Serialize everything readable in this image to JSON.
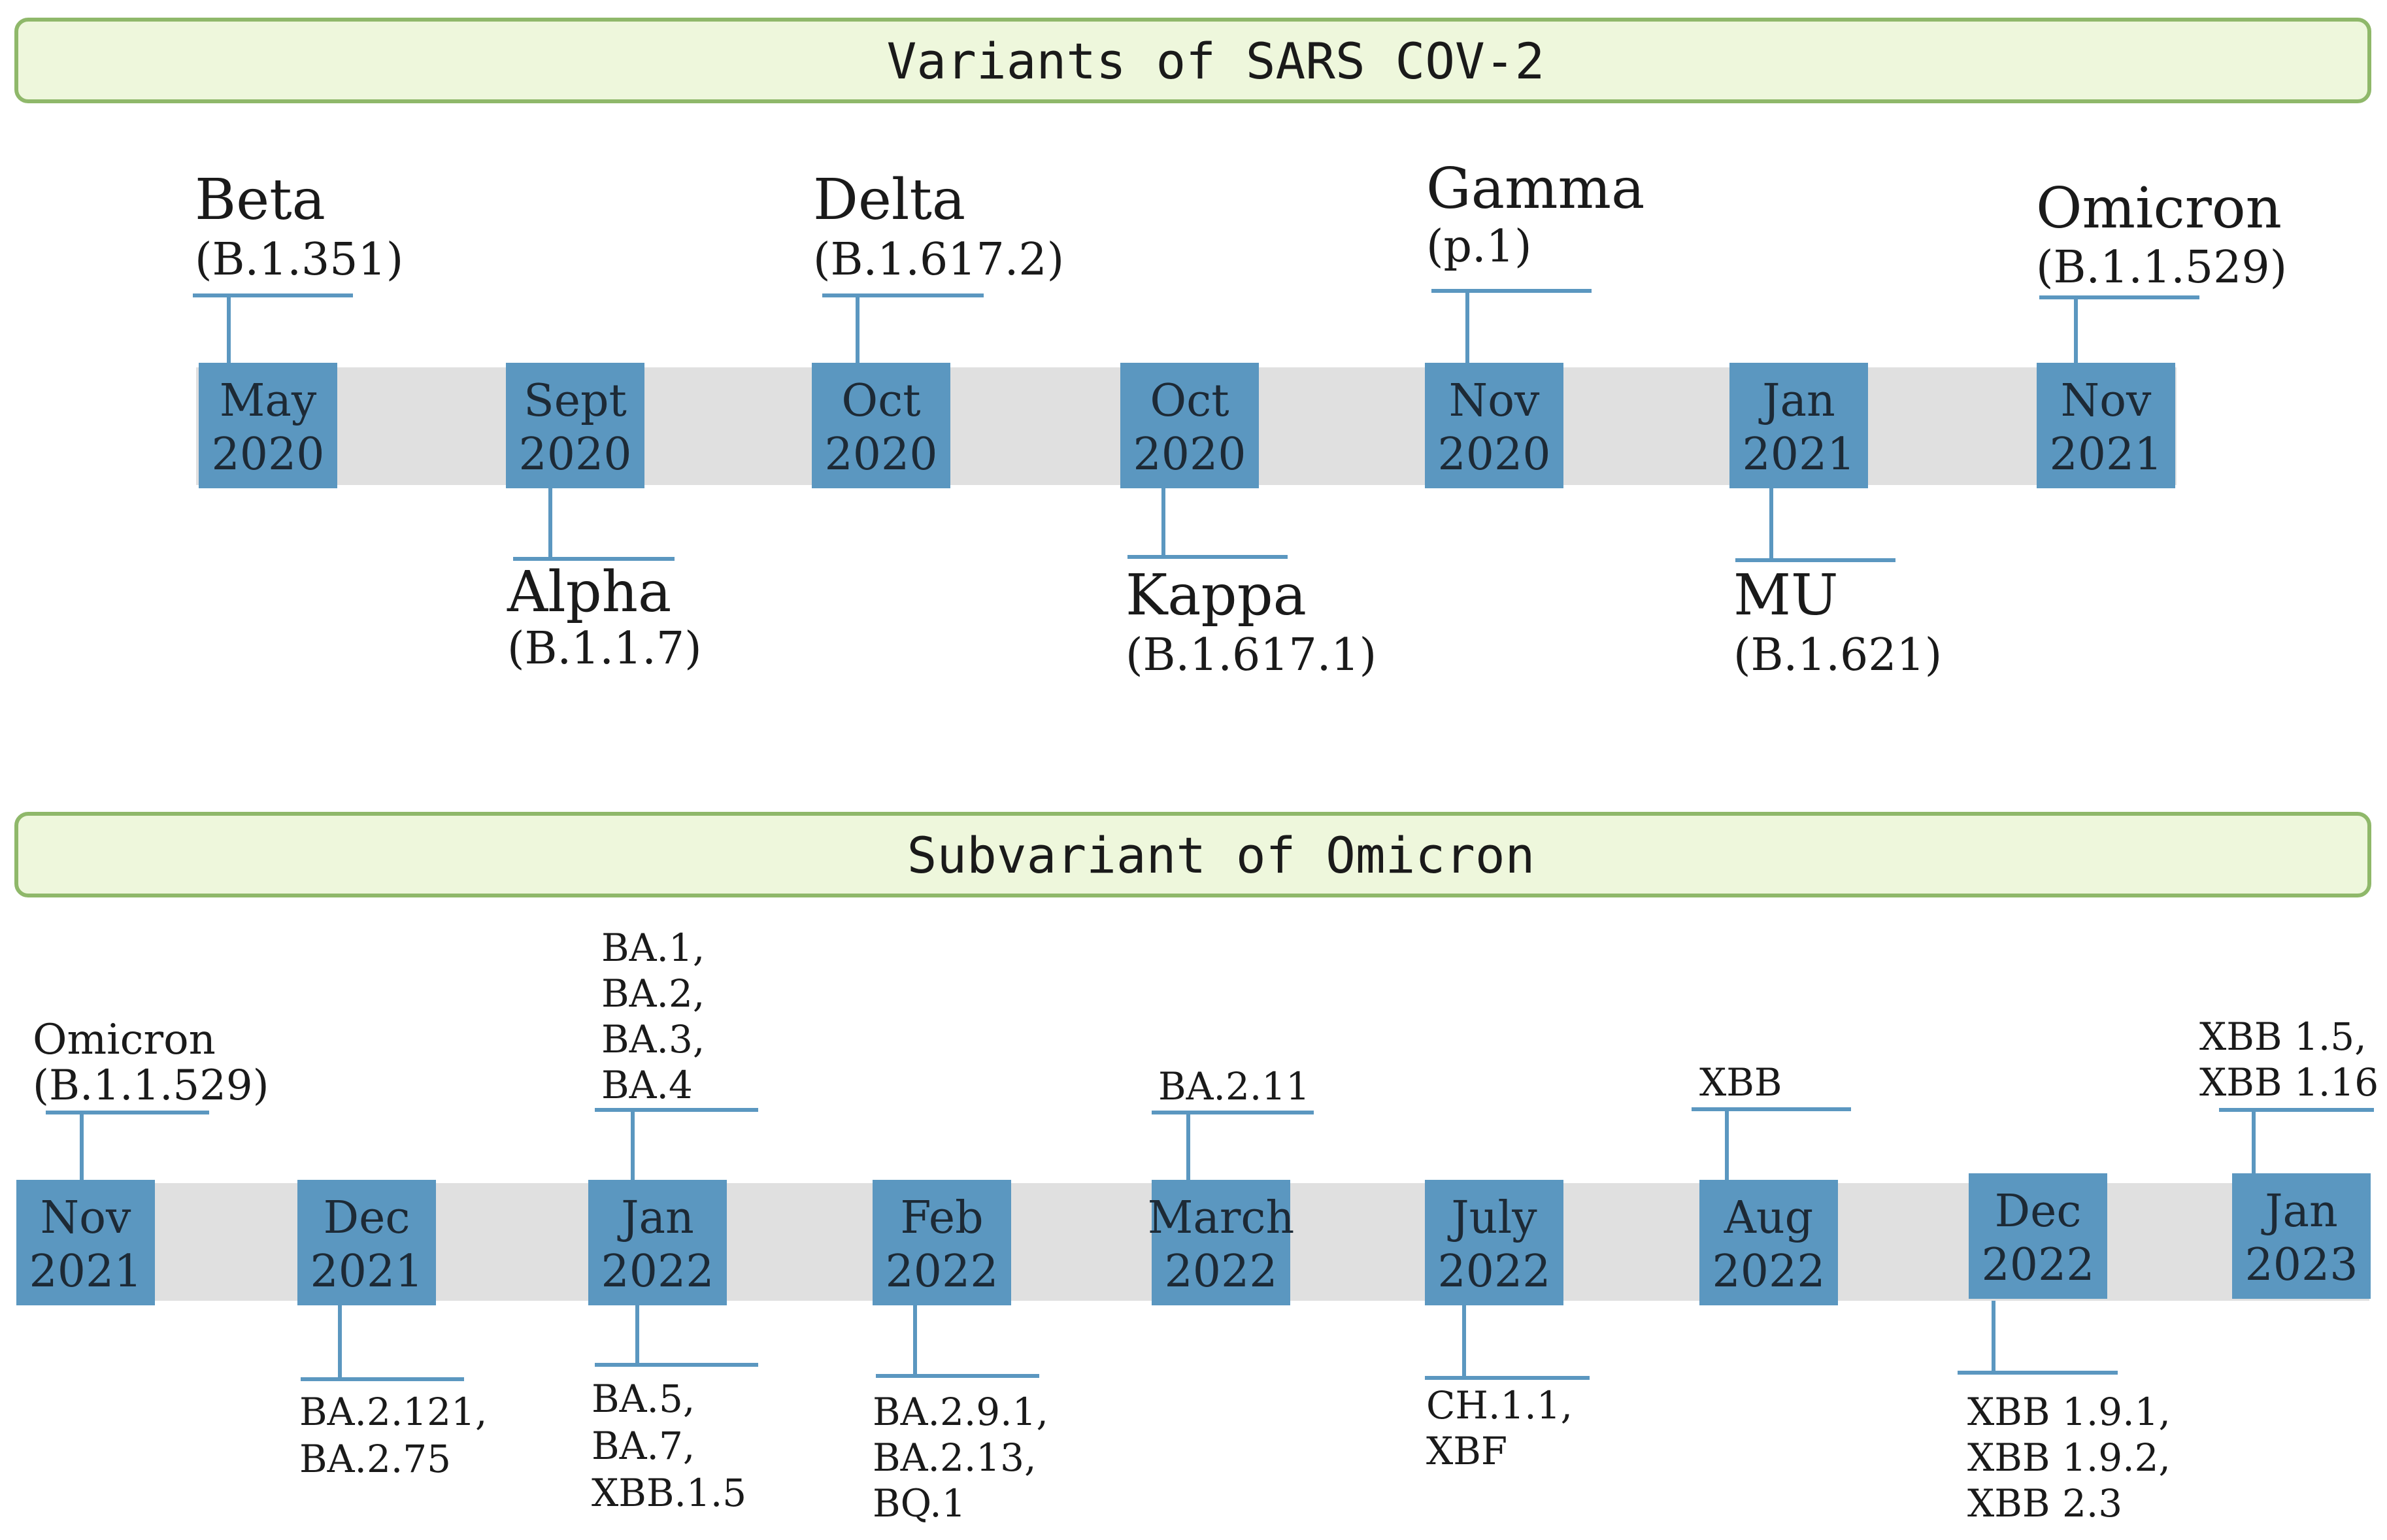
{
  "colors": {
    "header_fill": "#eef7dc",
    "header_stroke": "#8fb86a",
    "track": "#e0e0e0",
    "box": "#5b97c0",
    "box_text": "#1d2a36",
    "connector": "#5b97c0",
    "label": "#1a1a1a"
  },
  "variants": {
    "title": "Variants of SARS COV-2",
    "events": [
      {
        "date": [
          "May",
          "2020"
        ],
        "side": "above",
        "name": "Beta",
        "code": "(B.1.351)"
      },
      {
        "date": [
          "Sept",
          "2020"
        ],
        "side": "below",
        "name": "Alpha",
        "code": "(B.1.1.7)"
      },
      {
        "date": [
          "Oct",
          "2020"
        ],
        "side": "above",
        "name": "Delta",
        "code": "(B.1.617.2)"
      },
      {
        "date": [
          "Oct",
          "2020"
        ],
        "side": "below",
        "name": "Kappa",
        "code": "(B.1.617.1)"
      },
      {
        "date": [
          "Nov",
          "2020"
        ],
        "side": "above",
        "name": "Gamma",
        "code": "(p.1)"
      },
      {
        "date": [
          "Jan",
          "2021"
        ],
        "side": "below",
        "name": "MU",
        "code": "(B.1.621)"
      },
      {
        "date": [
          "Nov",
          "2021"
        ],
        "side": "above",
        "name": "Omicron",
        "code": "(B.1.1.529)"
      }
    ]
  },
  "subvariants": {
    "title": "Subvariant of Omicron",
    "events": [
      {
        "date": [
          "Nov",
          "2021"
        ],
        "above": [
          "Omicron",
          "(B.1.1.529)"
        ],
        "below": []
      },
      {
        "date": [
          "Dec",
          "2021"
        ],
        "above": [],
        "below": [
          "BA.2.121,",
          "BA.2.75"
        ]
      },
      {
        "date": [
          "Jan",
          "2022"
        ],
        "above": [
          "BA.1,",
          "BA.2,",
          "BA.3,",
          "BA.4"
        ],
        "below": [
          "BA.5,",
          "BA.7,",
          "XBB.1.5"
        ]
      },
      {
        "date": [
          "Feb",
          "2022"
        ],
        "above": [],
        "below": [
          "BA.2.9.1,",
          "BA.2.13,",
          "BQ.1"
        ]
      },
      {
        "date": [
          "March",
          "2022"
        ],
        "above": [
          "BA.2.11"
        ],
        "below": []
      },
      {
        "date": [
          "July",
          "2022"
        ],
        "above": [],
        "below": [
          "CH.1.1,",
          "XBF"
        ]
      },
      {
        "date": [
          "Aug",
          "2022"
        ],
        "above": [
          "XBB"
        ],
        "below": []
      },
      {
        "date": [
          "Dec",
          "2022"
        ],
        "above": [],
        "below": [
          "XBB 1.9.1,",
          "XBB 1.9.2,",
          "XBB 2.3"
        ]
      },
      {
        "date": [
          "Jan",
          "2023"
        ],
        "above": [
          "XBB 1.5,",
          "XBB 1.16"
        ],
        "below": []
      }
    ]
  }
}
